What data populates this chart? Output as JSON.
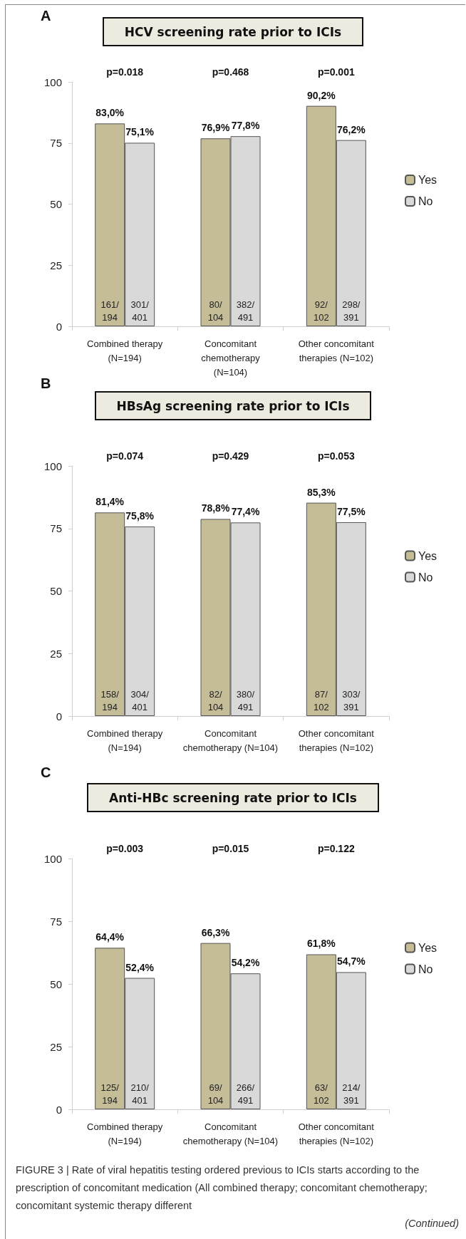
{
  "chart_data": [
    {
      "type": "bar",
      "title": "HCV screening rate prior to ICIs",
      "categories": [
        "Combined therapy\n(N=194)",
        "Concomitant\nchemotherapy\n(N=104)",
        "Other concomitant\ntherapies (N=102)"
      ],
      "series": [
        {
          "name": "Yes",
          "color": "#c5bc98",
          "values": [
            83.0,
            76.9,
            90.2
          ],
          "value_labels": [
            "83,0%",
            "76,9%",
            "90,2%"
          ]
        },
        {
          "name": "No",
          "color": "#d9d9d9",
          "values": [
            75.1,
            77.8,
            76.2
          ],
          "value_labels": [
            "75,1%",
            "77,8%",
            "76,2%"
          ]
        }
      ],
      "ylim": [
        0,
        100
      ],
      "yticks": [
        0,
        25,
        50,
        75,
        100
      ],
      "grid": false,
      "legend": "right",
      "annotations": [
        "A",
        "p=0.018",
        "p=0.468",
        "p=0.001",
        "161/\n194",
        "301/\n401",
        "80/\n104",
        "382/\n491",
        "92/\n102",
        "298/\n391"
      ]
    },
    {
      "type": "bar",
      "title": "HBsAg screening rate prior to ICIs",
      "categories": [
        "Combined therapy\n(N=194)",
        "Concomitant\nchemotherapy (N=104)",
        "Other concomitant\ntherapies (N=102)"
      ],
      "series": [
        {
          "name": "Yes",
          "color": "#c5bc98",
          "values": [
            81.4,
            78.8,
            85.3
          ],
          "value_labels": [
            "81,4%",
            "78,8%",
            "85,3%"
          ]
        },
        {
          "name": "No",
          "color": "#d9d9d9",
          "values": [
            75.8,
            77.4,
            77.5
          ],
          "value_labels": [
            "75,8%",
            "77,4%",
            "77,5%"
          ]
        }
      ],
      "ylim": [
        0,
        100
      ],
      "yticks": [
        0,
        25,
        50,
        75,
        100
      ],
      "grid": false,
      "legend": "right",
      "annotations": [
        "B",
        "p=0.074",
        "p=0.429",
        "p=0.053",
        "158/\n194",
        "304/\n401",
        "82/\n104",
        "380/\n491",
        "87/\n102",
        "303/\n391"
      ]
    },
    {
      "type": "bar",
      "title": "Anti-HBc screening rate prior to ICIs",
      "categories": [
        "Combined therapy\n(N=194)",
        "Concomitant\nchemotherapy (N=104)",
        "Other concomitant\ntherapies (N=102)"
      ],
      "series": [
        {
          "name": "Yes",
          "color": "#c5bc98",
          "values": [
            64.4,
            66.3,
            61.8
          ],
          "value_labels": [
            "64,4%",
            "66,3%",
            "61,8%"
          ]
        },
        {
          "name": "No",
          "color": "#d9d9d9",
          "values": [
            52.4,
            54.2,
            54.7
          ],
          "value_labels": [
            "52,4%",
            "54,2%",
            "54,7%"
          ]
        }
      ],
      "ylim": [
        0,
        100
      ],
      "yticks": [
        0,
        25,
        50,
        75,
        100
      ],
      "grid": false,
      "legend": "right",
      "annotations": [
        "C",
        "p=0.003",
        "p=0.015",
        "p=0.122",
        "125/\n194",
        "210/\n401",
        "69/\n104",
        "266/\n491",
        "63/\n102",
        "214/\n391",
        "FIGURE 3 | Rate of viral hepatitis testing ordered previous to ICIs starts according to the prescription of concomitant medication (All combined therapy; concomitant chemotherapy; concomitant systemic therapy different",
        "(Continued)"
      ]
    }
  ]
}
